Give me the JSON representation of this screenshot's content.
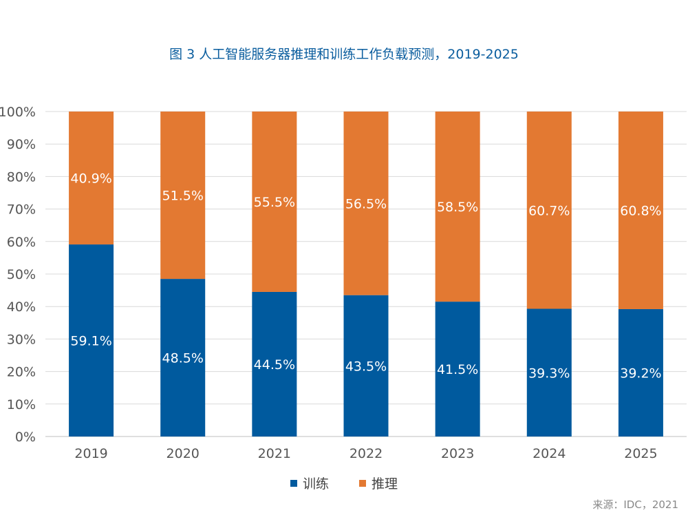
{
  "chart_data": {
    "type": "bar",
    "stacked": true,
    "title": "图 3 人工智能服务器推理和训练工作负载预测，2019-2025",
    "categories": [
      "2019",
      "2020",
      "2021",
      "2022",
      "2023",
      "2024",
      "2025"
    ],
    "series": [
      {
        "name": "训练",
        "color": "#005a9e",
        "values": [
          59.1,
          48.5,
          44.5,
          43.5,
          41.5,
          39.3,
          39.2
        ],
        "labels": [
          "59.1%",
          "48.5%",
          "44.5%",
          "43.5%",
          "41.5%",
          "39.3%",
          "39.2%"
        ]
      },
      {
        "name": "推理",
        "color": "#e37932",
        "values": [
          40.9,
          51.5,
          55.5,
          56.5,
          58.5,
          60.7,
          60.8
        ],
        "labels": [
          "40.9%",
          "51.5%",
          "55.5%",
          "56.5%",
          "58.5%",
          "60.7%",
          "60.8%"
        ]
      }
    ],
    "ylim": [
      0,
      100
    ],
    "yticks": [
      "0%",
      "10%",
      "20%",
      "30%",
      "40%",
      "50%",
      "60%",
      "70%",
      "80%",
      "90%",
      "100%"
    ],
    "grid": true,
    "legend_position": "bottom",
    "xlabel": "",
    "ylabel": ""
  },
  "source": "来源：IDC，2021"
}
